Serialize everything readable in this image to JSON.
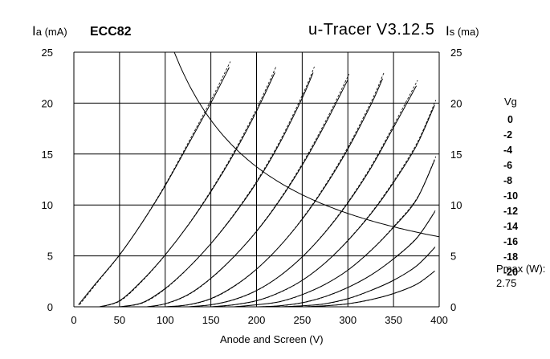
{
  "chart_data": {
    "type": "line",
    "title": "ECC82",
    "software": "u-Tracer V3.12.5",
    "left_axis_prefix": "I",
    "left_axis_label": "a (mA)",
    "right_axis_prefix": "I",
    "right_axis_label": "s (ma)",
    "xlabel": "Anode and Screen (V)",
    "xlim": [
      0,
      400
    ],
    "ylim": [
      0,
      25
    ],
    "xticks": [
      0,
      50,
      100,
      150,
      200,
      250,
      300,
      350,
      400
    ],
    "yticks": [
      0,
      5,
      10,
      15,
      20,
      25
    ],
    "grid": true,
    "legend_title": "Vg",
    "legend_placement": "right",
    "series": [
      {
        "name": "0",
        "x": [
          5,
          25,
          50,
          75,
          100,
          125,
          150,
          170
        ],
        "y": [
          0.2,
          2.4,
          5.1,
          8.3,
          11.9,
          15.9,
          20.0,
          23.5
        ]
      },
      {
        "name": "-2",
        "x": [
          28,
          50,
          75,
          100,
          125,
          150,
          175,
          200,
          220
        ],
        "y": [
          0,
          0.6,
          2.6,
          5.1,
          8.0,
          11.3,
          15.0,
          19.2,
          23.0
        ]
      },
      {
        "name": "-4",
        "x": [
          50,
          75,
          100,
          125,
          150,
          175,
          200,
          225,
          250,
          262
        ],
        "y": [
          0,
          0.4,
          1.8,
          3.8,
          6.2,
          9.0,
          12.2,
          16.0,
          20.5,
          23.0
        ]
      },
      {
        "name": "-6",
        "x": [
          80,
          100,
          125,
          150,
          175,
          200,
          225,
          250,
          275,
          300
        ],
        "y": [
          0,
          0.3,
          1.2,
          2.8,
          4.9,
          7.4,
          10.4,
          13.9,
          17.9,
          22.3
        ]
      },
      {
        "name": "-8",
        "x": [
          100,
          125,
          150,
          175,
          200,
          225,
          250,
          275,
          300,
          325,
          338
        ],
        "y": [
          0,
          0.2,
          0.8,
          2.0,
          3.7,
          5.9,
          8.6,
          11.8,
          15.5,
          19.8,
          22.4
        ]
      },
      {
        "name": "-10",
        "x": [
          125,
          150,
          175,
          200,
          225,
          250,
          275,
          300,
          325,
          350,
          375
        ],
        "y": [
          0,
          0.2,
          0.7,
          1.6,
          3.0,
          4.9,
          7.3,
          10.2,
          13.6,
          17.6,
          21.7
        ]
      },
      {
        "name": "-12",
        "x": [
          150,
          175,
          200,
          225,
          250,
          275,
          300,
          325,
          350,
          375,
          395
        ],
        "y": [
          0,
          0.2,
          0.6,
          1.4,
          2.6,
          4.3,
          6.5,
          9.1,
          12.2,
          15.8,
          19.8
        ]
      },
      {
        "name": "-14",
        "x": [
          175,
          200,
          225,
          250,
          275,
          300,
          325,
          350,
          375,
          395
        ],
        "y": [
          0,
          0.2,
          0.5,
          1.2,
          2.2,
          3.6,
          5.5,
          7.8,
          10.5,
          14.4
        ]
      },
      {
        "name": "-16",
        "x": [
          200,
          225,
          250,
          275,
          300,
          325,
          350,
          375,
          395
        ],
        "y": [
          0,
          0.1,
          0.4,
          1.0,
          1.9,
          3.1,
          4.7,
          6.7,
          9.3
        ]
      },
      {
        "name": "-18",
        "x": [
          225,
          250,
          275,
          300,
          325,
          350,
          375,
          395
        ],
        "y": [
          0,
          0.1,
          0.3,
          0.8,
          1.6,
          2.6,
          4.0,
          5.8
        ]
      },
      {
        "name": "-20",
        "x": [
          250,
          275,
          300,
          325,
          350,
          375,
          395
        ],
        "y": [
          0,
          0.1,
          0.3,
          0.7,
          1.3,
          2.2,
          3.5
        ]
      }
    ],
    "pmax_label": "Pmax (W):",
    "pmax_value": "2.75",
    "pmax_watts": 2.75
  }
}
